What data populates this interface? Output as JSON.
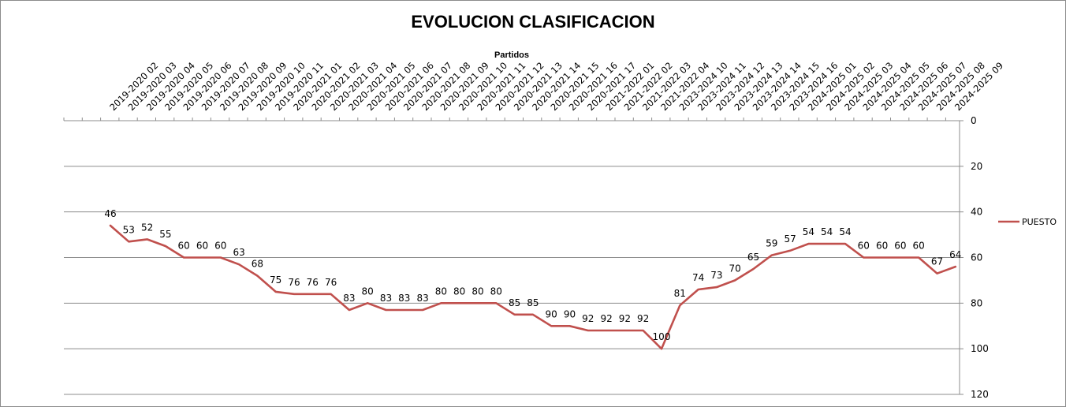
{
  "chart_data": {
    "type": "line",
    "title": "EVOLUCION CLASIFICACION",
    "xlabel": "Partidos",
    "ylabel": "",
    "ylim": [
      0,
      120
    ],
    "y_reversed": true,
    "y_ticks": [
      0,
      20,
      40,
      60,
      80,
      100,
      120
    ],
    "x_axis_position": "top",
    "y_axis_position": "right",
    "grid": true,
    "legend_position": "right",
    "line_color": "#c0504d",
    "categories": [
      "2019-2020 02",
      "2019-2020 03",
      "2019-2020 04",
      "2019-2020 05",
      "2019-2020 06",
      "2019-2020 07",
      "2019-2020 08",
      "2019-2020 09",
      "2019-2020 10",
      "2019-2020 11",
      "2020-2021 01",
      "2020-2021 02",
      "2020-2021 03",
      "2020-2021 04",
      "2020-2021 05",
      "2020-2021 06",
      "2020-2021 07",
      "2020-2021 08",
      "2020-2021 09",
      "2020-2021 10",
      "2020-2021 11",
      "2020-2021 12",
      "2020-2021 13",
      "2020-2021 14",
      "2020-2021 15",
      "2020-2021 16",
      "2020-2021 17",
      "2021-2022 01",
      "2021-2022 02",
      "2021-2022 03",
      "2021-2022 04",
      "2023-2024 10",
      "2023-2024 11",
      "2023-2024 12",
      "2023-2024 13",
      "2023-2024 14",
      "2023-2024 15",
      "2023-2024 16",
      "2024-2025 01",
      "2024-2025 02",
      "2024-2025 03",
      "2024-2025 04",
      "2024-2025 05",
      "2024-2025 06",
      "2024-2025 07",
      "2024-2025 08",
      "2024-2025 09"
    ],
    "series": [
      {
        "name": "PUESTO",
        "values": [
          46,
          53,
          52,
          55,
          60,
          60,
          60,
          63,
          68,
          75,
          76,
          76,
          76,
          83,
          80,
          83,
          83,
          83,
          80,
          80,
          80,
          80,
          85,
          85,
          90,
          90,
          92,
          92,
          92,
          92,
          100,
          81,
          74,
          73,
          70,
          65,
          59,
          57,
          54,
          54,
          54,
          60,
          60,
          60,
          60,
          67,
          64
        ]
      }
    ]
  }
}
